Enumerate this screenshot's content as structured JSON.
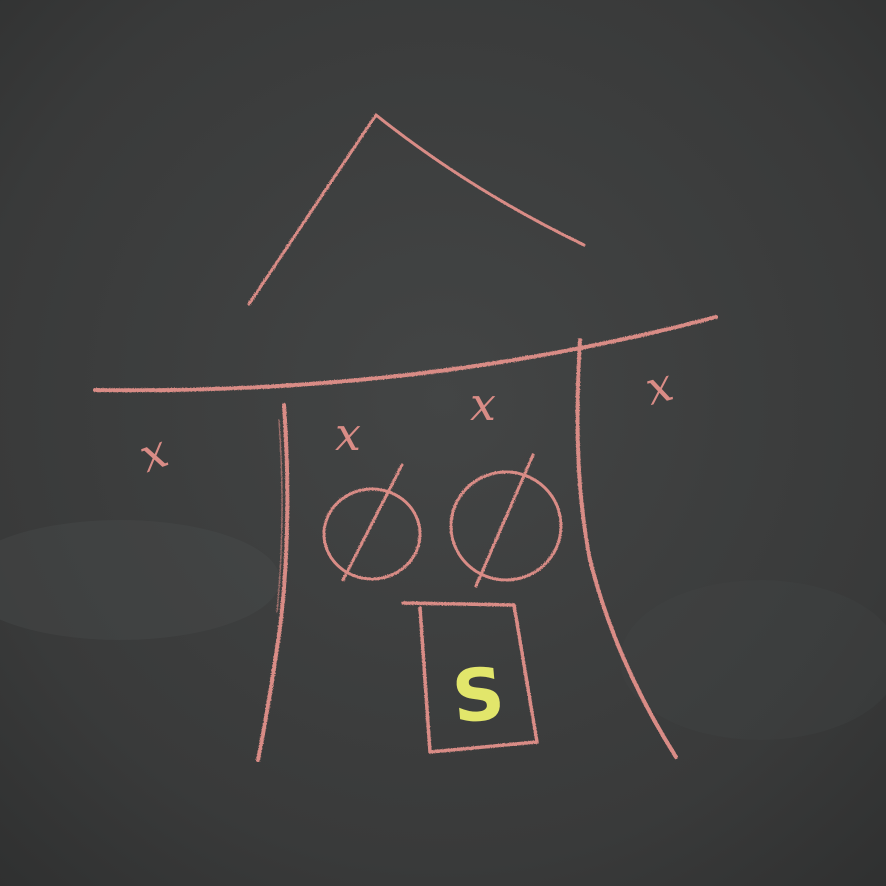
{
  "drawing": {
    "subject": "chalk drawing",
    "colors": {
      "board": "#3a3b3b",
      "chalk_red": "#d98c86",
      "chalk_yellow": "#e2e66b"
    },
    "labels": {
      "x_far_left": "x",
      "x_inner_left": "x",
      "x_inner_right": "x",
      "x_far_right": "x",
      "door_letter": "S"
    }
  }
}
